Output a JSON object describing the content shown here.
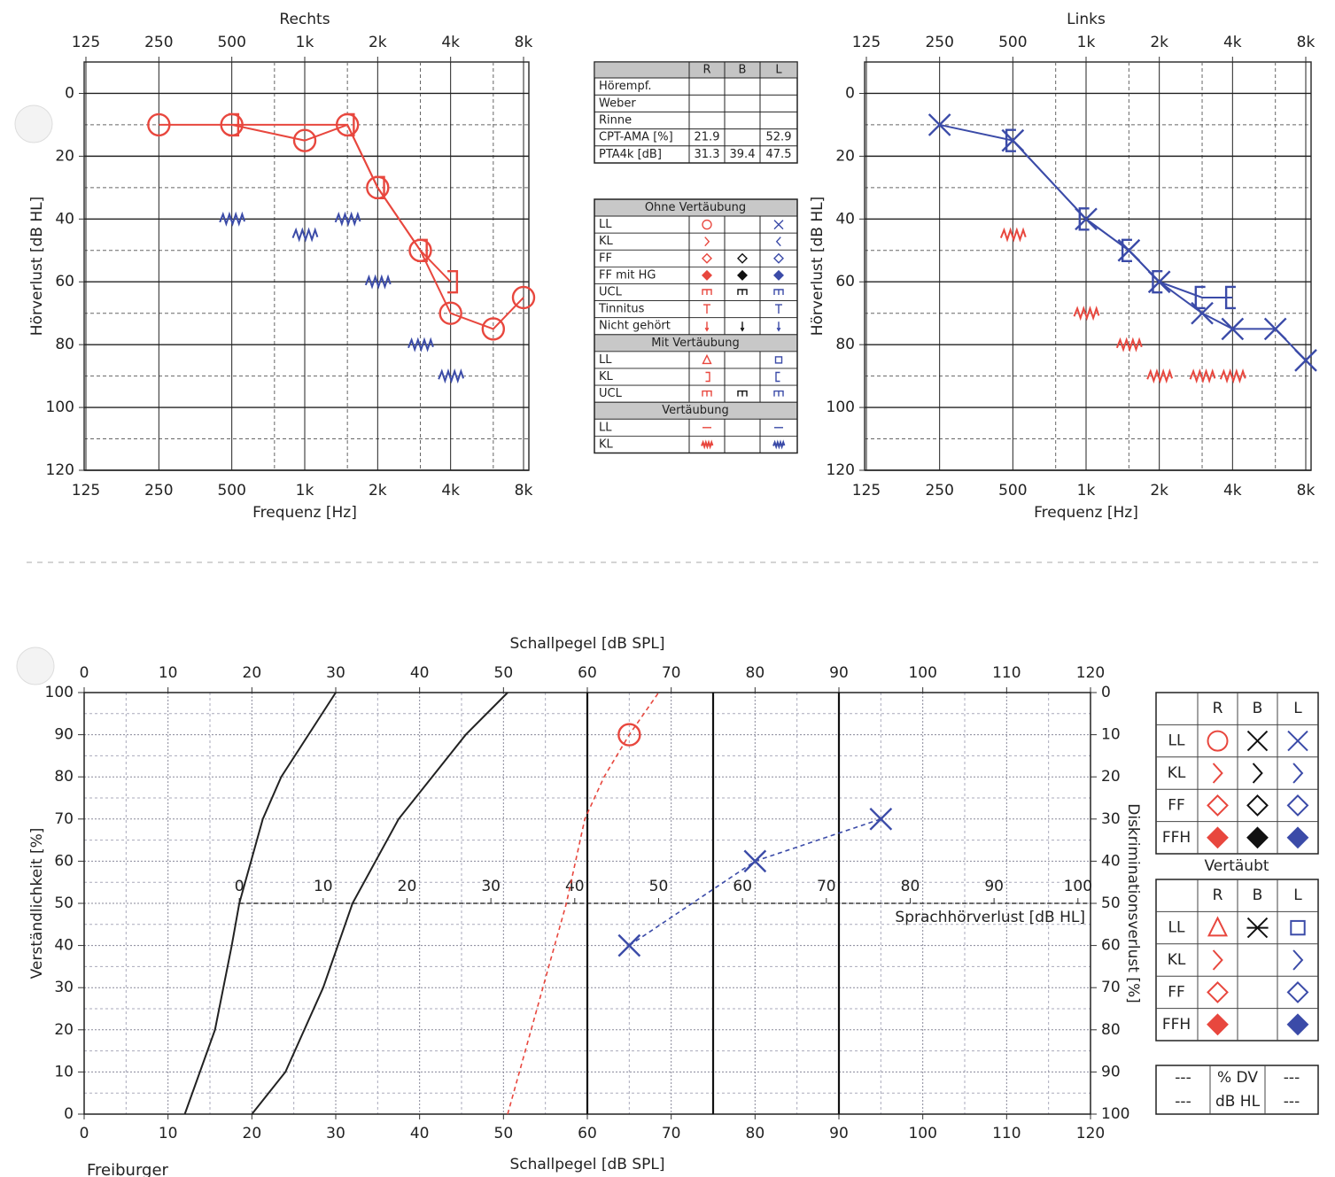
{
  "chart_data": [
    {
      "type": "audiogram",
      "title": "Rechts",
      "x_label": "Frequenz [Hz]",
      "y_label": "Hörverlust [dB HL]",
      "x_log": true,
      "xlim": [
        125,
        8000
      ],
      "xticks": [
        125,
        250,
        500,
        {
          "value": 1000,
          "label": "1k"
        },
        {
          "value": 2000,
          "label": "2k"
        },
        {
          "value": 4000,
          "label": "4k"
        },
        {
          "value": 8000,
          "label": "8k"
        }
      ],
      "x_minor_ticks": [
        750,
        1500,
        3000,
        6000
      ],
      "ylim": [
        120,
        -10
      ],
      "yticks": [
        0,
        20,
        40,
        60,
        80,
        100,
        120
      ],
      "y_minor_ticks": [
        10,
        30,
        50,
        70,
        90,
        110
      ],
      "grid": true,
      "series": [
        {
          "color": "#e8473e",
          "marker": "circle",
          "line": "solid",
          "x": [
            250,
            500,
            1000,
            1500,
            2000,
            3000,
            4000,
            6000,
            8000
          ],
          "values": [
            10,
            10,
            15,
            10,
            30,
            50,
            70,
            75,
            65
          ]
        },
        {
          "color": "#e8473e",
          "marker": "bracket-right",
          "line": "solid",
          "x": [
            500,
            1500,
            2000,
            3000,
            4000
          ],
          "values": [
            10,
            10,
            30,
            50,
            60
          ]
        },
        {
          "color": "#3b4ba8",
          "marker": "zigzag",
          "x": [
            500,
            1000,
            1500,
            2000,
            3000,
            4000
          ],
          "values": [
            40,
            45,
            40,
            60,
            80,
            90
          ]
        }
      ]
    },
    {
      "type": "audiogram",
      "title": "Links",
      "x_label": "Frequenz [Hz]",
      "y_label": "Hörverlust [dB HL]",
      "x_log": true,
      "xlim": [
        125,
        8000
      ],
      "xticks": [
        125,
        250,
        500,
        {
          "value": 1000,
          "label": "1k"
        },
        {
          "value": 2000,
          "label": "2k"
        },
        {
          "value": 4000,
          "label": "4k"
        },
        {
          "value": 8000,
          "label": "8k"
        }
      ],
      "x_minor_ticks": [
        750,
        1500,
        3000,
        6000
      ],
      "ylim": [
        120,
        -10
      ],
      "yticks": [
        0,
        20,
        40,
        60,
        80,
        100,
        120
      ],
      "y_minor_ticks": [
        10,
        30,
        50,
        70,
        90,
        110
      ],
      "grid": true,
      "series": [
        {
          "color": "#3b4ba8",
          "marker": "cross",
          "line": "solid",
          "x": [
            250,
            500,
            1000,
            1500,
            2000,
            3000,
            4000,
            6000,
            8000
          ],
          "values": [
            10,
            15,
            40,
            50,
            60,
            70,
            75,
            75,
            85
          ]
        },
        {
          "color": "#3b4ba8",
          "marker": "bracket-left",
          "line": "solid",
          "x": [
            500,
            1000,
            1500,
            2000,
            3000,
            4000
          ],
          "values": [
            15,
            40,
            50,
            60,
            65,
            65
          ]
        },
        {
          "color": "#e8473e",
          "marker": "zigzag",
          "x": [
            500,
            1000,
            1500,
            2000,
            3000,
            4000
          ],
          "values": [
            45,
            70,
            80,
            90,
            90,
            90
          ]
        }
      ]
    },
    {
      "type": "speech",
      "x_label": "Schallpegel [dB SPL]",
      "y_label": "Verständlichkeit [%]",
      "y2_label": "Diskriminationsverlust [%]",
      "xlim": [
        0,
        120
      ],
      "xticks": [
        0,
        10,
        20,
        30,
        40,
        50,
        60,
        70,
        80,
        90,
        100,
        110,
        120
      ],
      "x_minor_ticks": [
        5,
        15,
        25,
        35,
        45,
        55,
        65,
        75,
        85,
        95,
        105,
        115
      ],
      "ylim": [
        0,
        100
      ],
      "yticks": [
        0,
        10,
        20,
        30,
        40,
        50,
        60,
        70,
        80,
        90,
        100
      ],
      "y_minor_ticks": [
        5,
        15,
        25,
        35,
        45,
        55,
        65,
        75,
        85,
        95
      ],
      "y2lim": [
        100,
        0
      ],
      "y2ticks": [
        0,
        10,
        20,
        30,
        40,
        50,
        60,
        70,
        80,
        90,
        100
      ],
      "grid": true,
      "reference_lines_x": [
        60,
        75,
        90
      ],
      "x2_label": "Sprachhörverlust [dB HL]",
      "x2lim": [
        -18.5,
        101.5
      ],
      "x2ticks": [
        0,
        10,
        20,
        30,
        40,
        50,
        60,
        70,
        80,
        90,
        100
      ],
      "x2_axis_y": 50,
      "series": [
        {
          "color": "#222222",
          "line": "solid",
          "x": [
            12,
            15.6,
            17.6,
            18.5,
            21.3,
            23.5,
            30
          ],
          "values": [
            0,
            20,
            40,
            50,
            70,
            80,
            100
          ]
        },
        {
          "color": "#222222",
          "line": "solid",
          "x": [
            20,
            24,
            28.5,
            32,
            37.5,
            45.5,
            50.5
          ],
          "values": [
            0,
            10,
            30,
            50,
            70,
            90,
            100
          ]
        },
        {
          "color": "#e8473e",
          "line": "dashed",
          "x": [
            50.5,
            57.5,
            59.7,
            62,
            65,
            68.5
          ],
          "values": [
            0,
            50,
            70,
            80,
            90,
            100
          ]
        },
        {
          "color": "#e8473e",
          "marker": "circle",
          "x": [
            65
          ],
          "values": [
            90
          ]
        },
        {
          "color": "#3b4ba8",
          "line": "dashed",
          "marker": "cross",
          "x": [
            65,
            80,
            95
          ],
          "values": [
            40,
            60,
            70
          ]
        }
      ]
    }
  ],
  "results_table": {
    "header": [
      "R",
      "B",
      "L"
    ],
    "rows": [
      {
        "label": "Hörempf."
      },
      {
        "label": "Weber"
      },
      {
        "label": "Rinne"
      },
      {
        "label": "CPT-AMA [%]",
        "R": 21.9,
        "L": 52.9
      },
      {
        "label": "PTA4k [dB]",
        "R": 31.3,
        "B": 39.4,
        "L": 47.5
      }
    ]
  },
  "symbol_legend": {
    "sections": [
      {
        "title": "Ohne Vertäubung",
        "rows": [
          "LL",
          "KL",
          "FF",
          "FF mit HG",
          "UCL",
          "Tinnitus",
          "Nicht gehört"
        ]
      },
      {
        "title": "Mit Vertäubung",
        "rows": [
          "LL",
          "KL",
          "UCL"
        ]
      },
      {
        "title": "Vertäubung",
        "rows": [
          "LL",
          "KL"
        ]
      }
    ]
  },
  "speech_legend": {
    "header": [
      "R",
      "B",
      "L"
    ],
    "rows": [
      "LL",
      "KL",
      "FF",
      "FFH"
    ],
    "masked_title": "Vertäubt",
    "masked_header": [
      "R",
      "B",
      "L"
    ],
    "masked_rows": [
      "LL",
      "KL",
      "FF",
      "FFH"
    ],
    "footer": [
      [
        "---",
        "% DV",
        "---"
      ],
      [
        "---",
        "dB HL",
        "---"
      ]
    ]
  },
  "footer_text": "Freiburger"
}
